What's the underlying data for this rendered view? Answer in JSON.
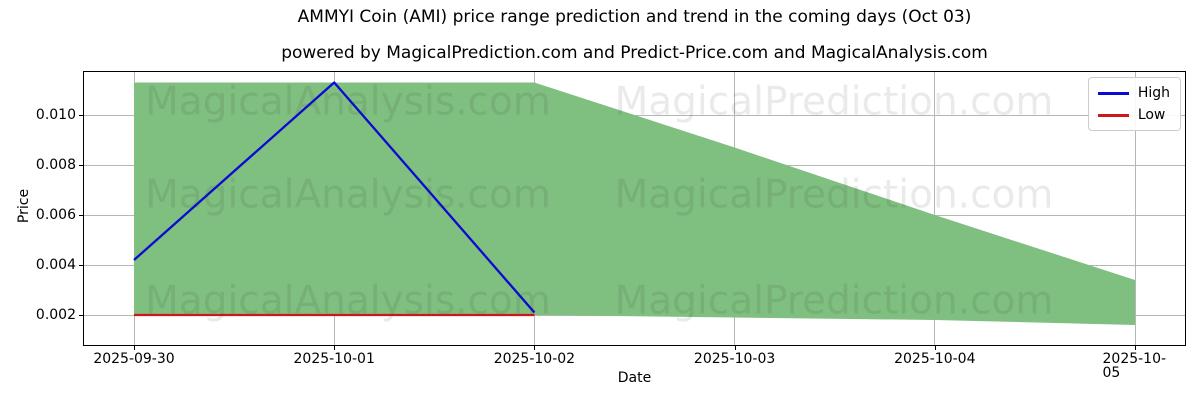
{
  "header": {
    "title": "AMMYI Coin (AMI) price range prediction and trend in the coming days (Oct 03)",
    "subtitle": "powered by MagicalPrediction.com and Predict-Price.com and MagicalAnalysis.com"
  },
  "axes": {
    "xlabel": "Date",
    "ylabel": "Price"
  },
  "legend": {
    "position": "top-right",
    "items": [
      {
        "label": "High",
        "color": "#0a0ad4"
      },
      {
        "label": "Low",
        "color": "#cf1717"
      }
    ]
  },
  "watermarks": {
    "left_text": "MagicalAnalysis.com",
    "right_text": "MagicalPrediction.com"
  },
  "chart_data": {
    "type": "area",
    "title": "AMMYI Coin (AMI) price range prediction and trend in the coming days (Oct 03)",
    "xlabel": "Date",
    "ylabel": "Price",
    "grid": true,
    "legend_position": "upper right",
    "categories": [
      "2025-09-30",
      "2025-10-01",
      "2025-10-02",
      "2025-10-03",
      "2025-10-04",
      "2025-10-05"
    ],
    "yticks": [
      0.002,
      0.004,
      0.006,
      0.008,
      0.01
    ],
    "ytick_labels": [
      "0.002",
      "0.004",
      "0.006",
      "0.008",
      "0.010"
    ],
    "ylim": [
      0.0008,
      0.01172
    ],
    "band": {
      "name": "price range",
      "color": "#7fbf7f",
      "upper": [
        0.0113,
        0.0113,
        0.0113,
        0.0087,
        0.006,
        0.0034
      ],
      "lower": [
        0.002,
        0.002,
        0.002,
        0.0019,
        0.0018,
        0.0016
      ]
    },
    "series": [
      {
        "name": "High",
        "color": "#0a0ad4",
        "x": [
          "2025-09-30",
          "2025-10-01",
          "2025-10-02"
        ],
        "values": [
          0.0042,
          0.0113,
          0.0021
        ]
      },
      {
        "name": "Low",
        "color": "#cf1717",
        "x": [
          "2025-09-30",
          "2025-10-01",
          "2025-10-02"
        ],
        "values": [
          0.002,
          0.002,
          0.002
        ]
      }
    ]
  }
}
